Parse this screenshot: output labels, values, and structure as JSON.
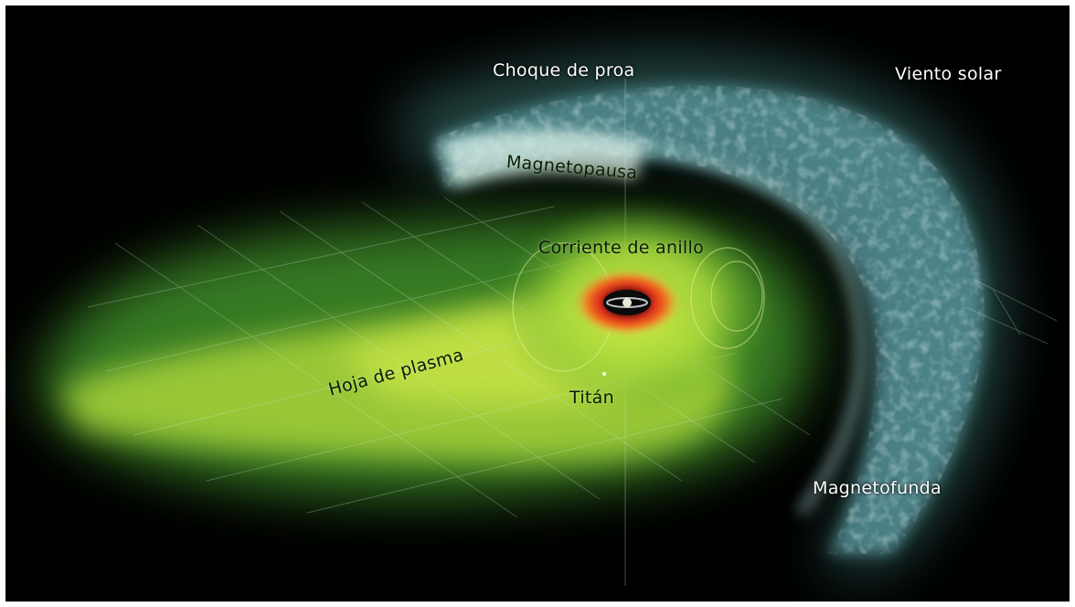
{
  "labels": {
    "choque_de_proa": "Choque de proa",
    "viento_solar": "Viento solar",
    "magnetopausa": "Magnetopausa",
    "corriente_de_anillo": "Corriente de  anillo",
    "hoja_de_plasma": "Hoja de plasma",
    "titan": "Titán",
    "magnetofunda": "Magnetofunda"
  },
  "colors": {
    "background": "#000000",
    "frame": "#ffffff",
    "plasma_green": "#8ccf2a",
    "plasma_yellow": "#c8e23a",
    "magnetosheath_blue": "#6aa6ad",
    "bow_shock_teal": "#3f7f78",
    "ring_current_orange": "#f26a1b",
    "ring_current_red": "#d8281a",
    "grid_line": "#cfe8d0"
  }
}
